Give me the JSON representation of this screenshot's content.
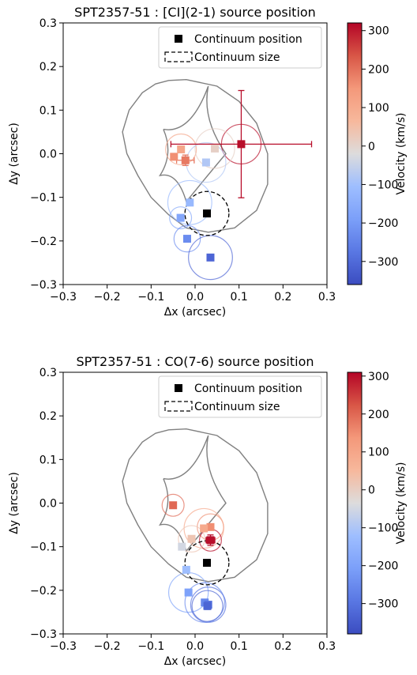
{
  "chart_data": [
    {
      "type": "scatter",
      "title": "SPT2357-51 : [CI](2-1) source position",
      "xlabel": "Δx (arcsec)",
      "ylabel": "Δy (arcsec)",
      "xlim": [
        -0.3,
        0.3
      ],
      "ylim": [
        -0.3,
        0.3
      ],
      "xticks": [
        "−0.3",
        "−0.2",
        "−0.1",
        "0.0",
        "0.1",
        "0.2",
        "0.3"
      ],
      "yticks": [
        "−0.3",
        "−0.2",
        "−0.1",
        "0.0",
        "0.1",
        "0.2",
        "0.3"
      ],
      "legend": {
        "position": "top-right",
        "entries": [
          "Continuum position",
          "Continuum size"
        ]
      },
      "continuum": {
        "x": 0.027,
        "y": -0.137,
        "size": 0.05
      },
      "colorbar": {
        "label": "Velocity (km/s)",
        "vmin": -360,
        "vmax": 320,
        "ticks": [
          300,
          200,
          100,
          0,
          -100,
          -200,
          -300
        ],
        "ticklabels": [
          "300",
          "200",
          "100",
          "0",
          "−100",
          "−200",
          "−300"
        ],
        "colormap": "coolwarm"
      },
      "series": [
        {
          "x": 0.105,
          "y": 0.022,
          "v": 310,
          "size": 0.045,
          "xerr": 0.16,
          "yerr": 0.123
        },
        {
          "x": -0.022,
          "y": -0.015,
          "v": 190,
          "size": 0.0,
          "xerr": 0.02,
          "yerr": 0.012
        },
        {
          "x": -0.048,
          "y": -0.007,
          "v": 160,
          "size": 0.0
        },
        {
          "x": -0.032,
          "y": 0.01,
          "v": 110,
          "size": 0.035
        },
        {
          "x": 0.045,
          "y": 0.012,
          "v": 10,
          "size": 0.045
        },
        {
          "x": 0.025,
          "y": -0.02,
          "v": -80,
          "size": 0.045
        },
        {
          "x": -0.012,
          "y": -0.112,
          "v": -120,
          "size": 0.05
        },
        {
          "x": -0.033,
          "y": -0.147,
          "v": -170,
          "size": 0.025
        },
        {
          "x": -0.018,
          "y": -0.195,
          "v": -230,
          "size": 0.03
        },
        {
          "x": 0.035,
          "y": -0.238,
          "v": -310,
          "size": 0.05
        }
      ]
    },
    {
      "type": "scatter",
      "title": "SPT2357-51 : CO(7-6) source position",
      "xlabel": "Δx (arcsec)",
      "ylabel": "Δy (arcsec)",
      "xlim": [
        -0.3,
        0.3
      ],
      "ylim": [
        -0.3,
        0.3
      ],
      "xticks": [
        "−0.3",
        "−0.2",
        "−0.1",
        "0.0",
        "0.1",
        "0.2",
        "0.3"
      ],
      "yticks": [
        "−0.3",
        "−0.2",
        "−0.1",
        "0.0",
        "0.1",
        "0.2",
        "0.3"
      ],
      "legend": {
        "position": "top-right",
        "entries": [
          "Continuum position",
          "Continuum size"
        ]
      },
      "continuum": {
        "x": 0.027,
        "y": -0.137,
        "size": 0.05
      },
      "colorbar": {
        "label": "Velocity (km/s)",
        "vmin": -380,
        "vmax": 310,
        "ticks": [
          300,
          200,
          100,
          0,
          -100,
          -200,
          -300
        ],
        "ticklabels": [
          "300",
          "200",
          "100",
          "0",
          "−100",
          "−200",
          "−300"
        ],
        "colormap": "coolwarm"
      },
      "series": [
        {
          "x": -0.05,
          "y": -0.005,
          "v": 200,
          "size": 0.025
        },
        {
          "x": 0.035,
          "y": -0.055,
          "v": 150,
          "size": 0.03
        },
        {
          "x": 0.02,
          "y": -0.058,
          "v": 90,
          "size": 0.045
        },
        {
          "x": 0.035,
          "y": -0.085,
          "v": 300,
          "size": 0.025,
          "xerr": 0.01,
          "yerr": 0.012
        },
        {
          "x": -0.008,
          "y": -0.082,
          "v": 20,
          "size": 0.03
        },
        {
          "x": -0.03,
          "y": -0.1,
          "v": -50,
          "size": 0.0
        },
        {
          "x": -0.02,
          "y": -0.153,
          "v": -120,
          "size": 0.0
        },
        {
          "x": -0.015,
          "y": -0.205,
          "v": -200,
          "size": 0.045
        },
        {
          "x": 0.022,
          "y": -0.228,
          "v": -260,
          "size": 0.045
        },
        {
          "x": 0.03,
          "y": -0.233,
          "v": -300,
          "size": 0.04
        },
        {
          "x": 0.028,
          "y": -0.236,
          "v": -330,
          "size": 0.035,
          "xerr": 0.008,
          "yerr": 0.008
        }
      ]
    }
  ]
}
